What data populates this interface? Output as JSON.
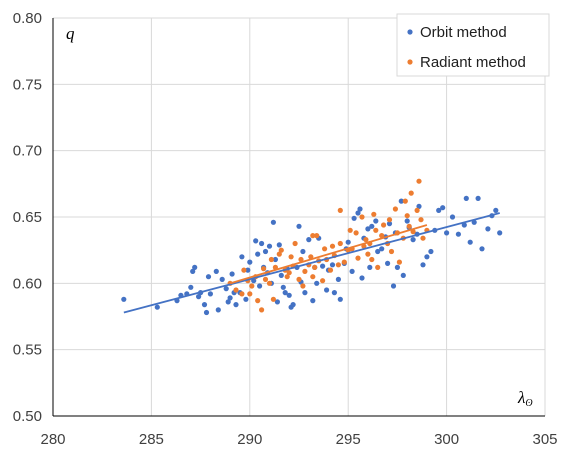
{
  "chart_data": {
    "type": "scatter",
    "title": "",
    "xlabel": "λ",
    "xlabel_sub": "ʘ",
    "ylabel": "q",
    "xlim": [
      280,
      305
    ],
    "ylim": [
      0.5,
      0.8
    ],
    "xticks": [
      "280",
      "285",
      "290",
      "295",
      "300",
      "305"
    ],
    "yticks": [
      "0.50",
      "0.55",
      "0.60",
      "0.65",
      "0.70",
      "0.75",
      "0.80"
    ],
    "grid": true,
    "legend_position": "top-right",
    "series": [
      {
        "name": "Orbit method",
        "color": "#4472c4",
        "points": [
          [
            283.6,
            0.588
          ],
          [
            285.3,
            0.582
          ],
          [
            286.3,
            0.587
          ],
          [
            286.5,
            0.591
          ],
          [
            286.8,
            0.592
          ],
          [
            287.0,
            0.597
          ],
          [
            287.1,
            0.609
          ],
          [
            287.2,
            0.612
          ],
          [
            287.4,
            0.59
          ],
          [
            287.5,
            0.593
          ],
          [
            287.7,
            0.584
          ],
          [
            287.8,
            0.578
          ],
          [
            287.9,
            0.605
          ],
          [
            288.0,
            0.592
          ],
          [
            288.3,
            0.609
          ],
          [
            288.4,
            0.58
          ],
          [
            288.6,
            0.603
          ],
          [
            288.8,
            0.596
          ],
          [
            288.9,
            0.586
          ],
          [
            289.0,
            0.589
          ],
          [
            289.1,
            0.607
          ],
          [
            289.2,
            0.593
          ],
          [
            289.3,
            0.584
          ],
          [
            289.5,
            0.593
          ],
          [
            289.6,
            0.62
          ],
          [
            289.8,
            0.588
          ],
          [
            289.9,
            0.61
          ],
          [
            290.0,
            0.616
          ],
          [
            290.2,
            0.602
          ],
          [
            290.3,
            0.632
          ],
          [
            290.4,
            0.622
          ],
          [
            290.5,
            0.598
          ],
          [
            290.6,
            0.63
          ],
          [
            290.7,
            0.612
          ],
          [
            290.8,
            0.624
          ],
          [
            290.9,
            0.608
          ],
          [
            291.0,
            0.628
          ],
          [
            291.1,
            0.6
          ],
          [
            291.2,
            0.646
          ],
          [
            291.3,
            0.618
          ],
          [
            291.4,
            0.586
          ],
          [
            291.5,
            0.629
          ],
          [
            291.6,
            0.606
          ],
          [
            291.7,
            0.597
          ],
          [
            291.8,
            0.593
          ],
          [
            291.9,
            0.611
          ],
          [
            292.0,
            0.591
          ],
          [
            292.1,
            0.582
          ],
          [
            292.2,
            0.584
          ],
          [
            292.4,
            0.612
          ],
          [
            292.5,
            0.643
          ],
          [
            292.6,
            0.601
          ],
          [
            292.7,
            0.624
          ],
          [
            292.8,
            0.593
          ],
          [
            293.0,
            0.633
          ],
          [
            293.2,
            0.587
          ],
          [
            293.3,
            0.612
          ],
          [
            293.4,
            0.6
          ],
          [
            293.5,
            0.634
          ],
          [
            293.7,
            0.613
          ],
          [
            293.9,
            0.595
          ],
          [
            294.0,
            0.61
          ],
          [
            294.2,
            0.614
          ],
          [
            294.3,
            0.593
          ],
          [
            294.5,
            0.603
          ],
          [
            294.6,
            0.588
          ],
          [
            294.8,
            0.615
          ],
          [
            294.9,
            0.626
          ],
          [
            295.0,
            0.631
          ],
          [
            295.2,
            0.609
          ],
          [
            295.3,
            0.649
          ],
          [
            295.5,
            0.653
          ],
          [
            295.6,
            0.656
          ],
          [
            295.7,
            0.604
          ],
          [
            295.8,
            0.634
          ],
          [
            296.0,
            0.641
          ],
          [
            296.1,
            0.612
          ],
          [
            296.2,
            0.643
          ],
          [
            296.4,
            0.647
          ],
          [
            296.5,
            0.624
          ],
          [
            296.7,
            0.626
          ],
          [
            296.9,
            0.635
          ],
          [
            297.0,
            0.615
          ],
          [
            297.1,
            0.645
          ],
          [
            297.3,
            0.598
          ],
          [
            297.4,
            0.638
          ],
          [
            297.5,
            0.612
          ],
          [
            297.7,
            0.662
          ],
          [
            297.8,
            0.606
          ],
          [
            298.0,
            0.647
          ],
          [
            298.1,
            0.642
          ],
          [
            298.3,
            0.633
          ],
          [
            298.5,
            0.637
          ],
          [
            298.6,
            0.658
          ],
          [
            298.8,
            0.614
          ],
          [
            299.0,
            0.62
          ],
          [
            299.2,
            0.624
          ],
          [
            299.4,
            0.64
          ],
          [
            299.6,
            0.655
          ],
          [
            299.8,
            0.657
          ],
          [
            300.0,
            0.638
          ],
          [
            300.3,
            0.65
          ],
          [
            300.6,
            0.637
          ],
          [
            300.9,
            0.644
          ],
          [
            301.0,
            0.664
          ],
          [
            301.2,
            0.631
          ],
          [
            301.4,
            0.646
          ],
          [
            301.6,
            0.664
          ],
          [
            301.8,
            0.626
          ],
          [
            302.1,
            0.641
          ],
          [
            302.3,
            0.651
          ],
          [
            302.5,
            0.655
          ],
          [
            302.7,
            0.638
          ]
        ]
      },
      {
        "name": "Radiant method",
        "color": "#ed7d31",
        "points": [
          [
            289.0,
            0.6
          ],
          [
            289.3,
            0.595
          ],
          [
            289.6,
            0.592
          ],
          [
            289.7,
            0.61
          ],
          [
            289.9,
            0.602
          ],
          [
            290.0,
            0.592
          ],
          [
            290.1,
            0.598
          ],
          [
            290.3,
            0.605
          ],
          [
            290.4,
            0.587
          ],
          [
            290.6,
            0.58
          ],
          [
            290.7,
            0.611
          ],
          [
            290.8,
            0.603
          ],
          [
            291.0,
            0.6
          ],
          [
            291.1,
            0.618
          ],
          [
            291.2,
            0.588
          ],
          [
            291.3,
            0.612
          ],
          [
            291.5,
            0.622
          ],
          [
            291.6,
            0.625
          ],
          [
            291.8,
            0.61
          ],
          [
            291.9,
            0.605
          ],
          [
            292.0,
            0.608
          ],
          [
            292.1,
            0.62
          ],
          [
            292.2,
            0.613
          ],
          [
            292.3,
            0.63
          ],
          [
            292.5,
            0.603
          ],
          [
            292.6,
            0.618
          ],
          [
            292.7,
            0.598
          ],
          [
            292.8,
            0.609
          ],
          [
            293.0,
            0.614
          ],
          [
            293.1,
            0.62
          ],
          [
            293.2,
            0.605
          ],
          [
            293.3,
            0.612
          ],
          [
            293.4,
            0.636
          ],
          [
            293.5,
            0.617
          ],
          [
            293.7,
            0.602
          ],
          [
            293.8,
            0.626
          ],
          [
            293.9,
            0.618
          ],
          [
            294.1,
            0.61
          ],
          [
            294.2,
            0.628
          ],
          [
            294.3,
            0.621
          ],
          [
            294.5,
            0.614
          ],
          [
            294.6,
            0.63
          ],
          [
            294.8,
            0.616
          ],
          [
            295.0,
            0.625
          ],
          [
            295.1,
            0.64
          ],
          [
            295.2,
            0.626
          ],
          [
            295.4,
            0.638
          ],
          [
            295.5,
            0.619
          ],
          [
            295.7,
            0.65
          ],
          [
            295.8,
            0.628
          ],
          [
            295.9,
            0.633
          ],
          [
            296.0,
            0.622
          ],
          [
            296.1,
            0.63
          ],
          [
            296.3,
            0.652
          ],
          [
            296.4,
            0.64
          ],
          [
            296.5,
            0.612
          ],
          [
            296.7,
            0.636
          ],
          [
            296.8,
            0.644
          ],
          [
            297.0,
            0.63
          ],
          [
            297.1,
            0.648
          ],
          [
            297.2,
            0.624
          ],
          [
            297.4,
            0.656
          ],
          [
            297.5,
            0.638
          ],
          [
            297.6,
            0.616
          ],
          [
            297.8,
            0.634
          ],
          [
            297.9,
            0.662
          ],
          [
            298.0,
            0.651
          ],
          [
            298.1,
            0.643
          ],
          [
            298.2,
            0.668
          ],
          [
            298.3,
            0.639
          ],
          [
            298.5,
            0.655
          ],
          [
            298.6,
            0.677
          ],
          [
            298.7,
            0.648
          ],
          [
            298.8,
            0.634
          ],
          [
            299.0,
            0.64
          ],
          [
            294.6,
            0.655
          ],
          [
            293.2,
            0.636
          ],
          [
            296.2,
            0.618
          ]
        ]
      }
    ],
    "trendlines": [
      {
        "series": "Orbit method",
        "color": "#4472c4",
        "x": [
          283.6,
          302.7
        ],
        "y": [
          0.578,
          0.653
        ]
      },
      {
        "series": "Radiant method",
        "color": "#ed7d31",
        "x": [
          289.0,
          299.0
        ],
        "y": [
          0.6,
          0.644
        ]
      }
    ]
  }
}
